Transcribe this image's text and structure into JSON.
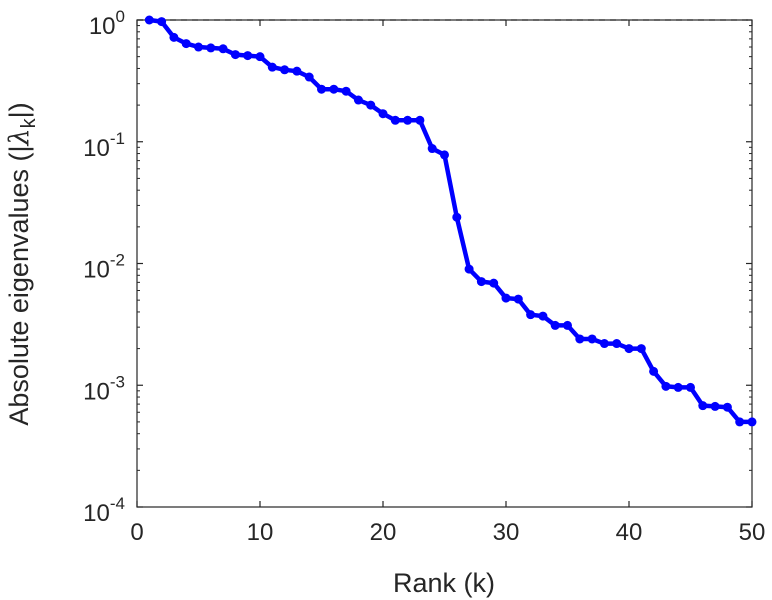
{
  "chart_data": {
    "type": "line",
    "ylabel": "Absolute eigenvalues (|",
    "ylabel_symbol": "λ",
    "ylabel_symbol_subscript": "k",
    "ylabel_suffix": "|)",
    "xlabel": "Rank (k)",
    "xlim": [
      0,
      50
    ],
    "ylim": [
      0.0001,
      1
    ],
    "yscale": "log",
    "grid": false,
    "x_ticks": [
      0,
      10,
      20,
      30,
      40,
      50
    ],
    "y_ticks": [
      {
        "value": 1,
        "base": "10",
        "exp": "0"
      },
      {
        "value": 0.1,
        "base": "10",
        "exp": "-1"
      },
      {
        "value": 0.01,
        "base": "10",
        "exp": "-2"
      },
      {
        "value": 0.001,
        "base": "10",
        "exp": "-3"
      },
      {
        "value": 0.0001,
        "base": "10",
        "exp": "-4"
      }
    ],
    "reference_line": {
      "y": 1,
      "style": "dashed"
    },
    "series": [
      {
        "color": "#0000ff",
        "marker": "circle",
        "x": [
          1,
          2,
          3,
          4,
          5,
          6,
          7,
          8,
          9,
          10,
          11,
          12,
          13,
          14,
          15,
          16,
          17,
          18,
          19,
          20,
          21,
          22,
          23,
          24,
          25,
          26,
          27,
          28,
          29,
          30,
          31,
          32,
          33,
          34,
          35,
          36,
          37,
          38,
          39,
          40,
          41,
          42,
          43,
          44,
          45,
          46,
          47,
          48,
          49,
          50
        ],
        "y": [
          1.0,
          0.97,
          0.72,
          0.64,
          0.6,
          0.59,
          0.58,
          0.52,
          0.51,
          0.5,
          0.41,
          0.39,
          0.38,
          0.34,
          0.27,
          0.27,
          0.26,
          0.22,
          0.2,
          0.17,
          0.15,
          0.15,
          0.15,
          0.088,
          0.078,
          0.024,
          0.009,
          0.0071,
          0.0069,
          0.0052,
          0.0051,
          0.0038,
          0.0037,
          0.0031,
          0.0031,
          0.0024,
          0.0024,
          0.0022,
          0.0022,
          0.002,
          0.002,
          0.0013,
          0.00098,
          0.00096,
          0.00096,
          0.00068,
          0.00067,
          0.00066,
          0.0005,
          0.0005
        ]
      }
    ]
  }
}
